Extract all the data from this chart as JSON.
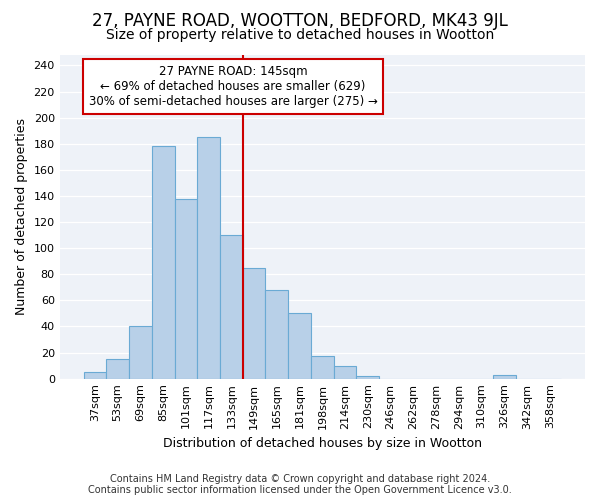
{
  "title": "27, PAYNE ROAD, WOOTTON, BEDFORD, MK43 9JL",
  "subtitle": "Size of property relative to detached houses in Wootton",
  "xlabel": "Distribution of detached houses by size in Wootton",
  "ylabel": "Number of detached properties",
  "categories": [
    "37sqm",
    "53sqm",
    "69sqm",
    "85sqm",
    "101sqm",
    "117sqm",
    "133sqm",
    "149sqm",
    "165sqm",
    "181sqm",
    "198sqm",
    "214sqm",
    "230sqm",
    "246sqm",
    "262sqm",
    "278sqm",
    "294sqm",
    "310sqm",
    "326sqm",
    "342sqm",
    "358sqm"
  ],
  "values": [
    5,
    15,
    40,
    178,
    138,
    185,
    110,
    85,
    68,
    50,
    17,
    10,
    2,
    0,
    0,
    0,
    0,
    0,
    3,
    0,
    0
  ],
  "bar_color": "#b8d0e8",
  "bar_edge_color": "#6aaad4",
  "vline_x": 7,
  "vline_color": "#cc0000",
  "annotation_text": "27 PAYNE ROAD: 145sqm\n← 69% of detached houses are smaller (629)\n30% of semi-detached houses are larger (275) →",
  "annotation_box_color": "#ffffff",
  "annotation_box_edge": "#cc0000",
  "ylim": [
    0,
    248
  ],
  "yticks": [
    0,
    20,
    40,
    60,
    80,
    100,
    120,
    140,
    160,
    180,
    200,
    220,
    240
  ],
  "footer1": "Contains HM Land Registry data © Crown copyright and database right 2024.",
  "footer2": "Contains public sector information licensed under the Open Government Licence v3.0.",
  "bg_color": "#eef2f8",
  "grid_color": "#ffffff",
  "fig_bg": "#ffffff",
  "title_fontsize": 12,
  "subtitle_fontsize": 10,
  "axis_label_fontsize": 9,
  "tick_fontsize": 8,
  "annotation_fontsize": 8.5,
  "footer_fontsize": 7
}
